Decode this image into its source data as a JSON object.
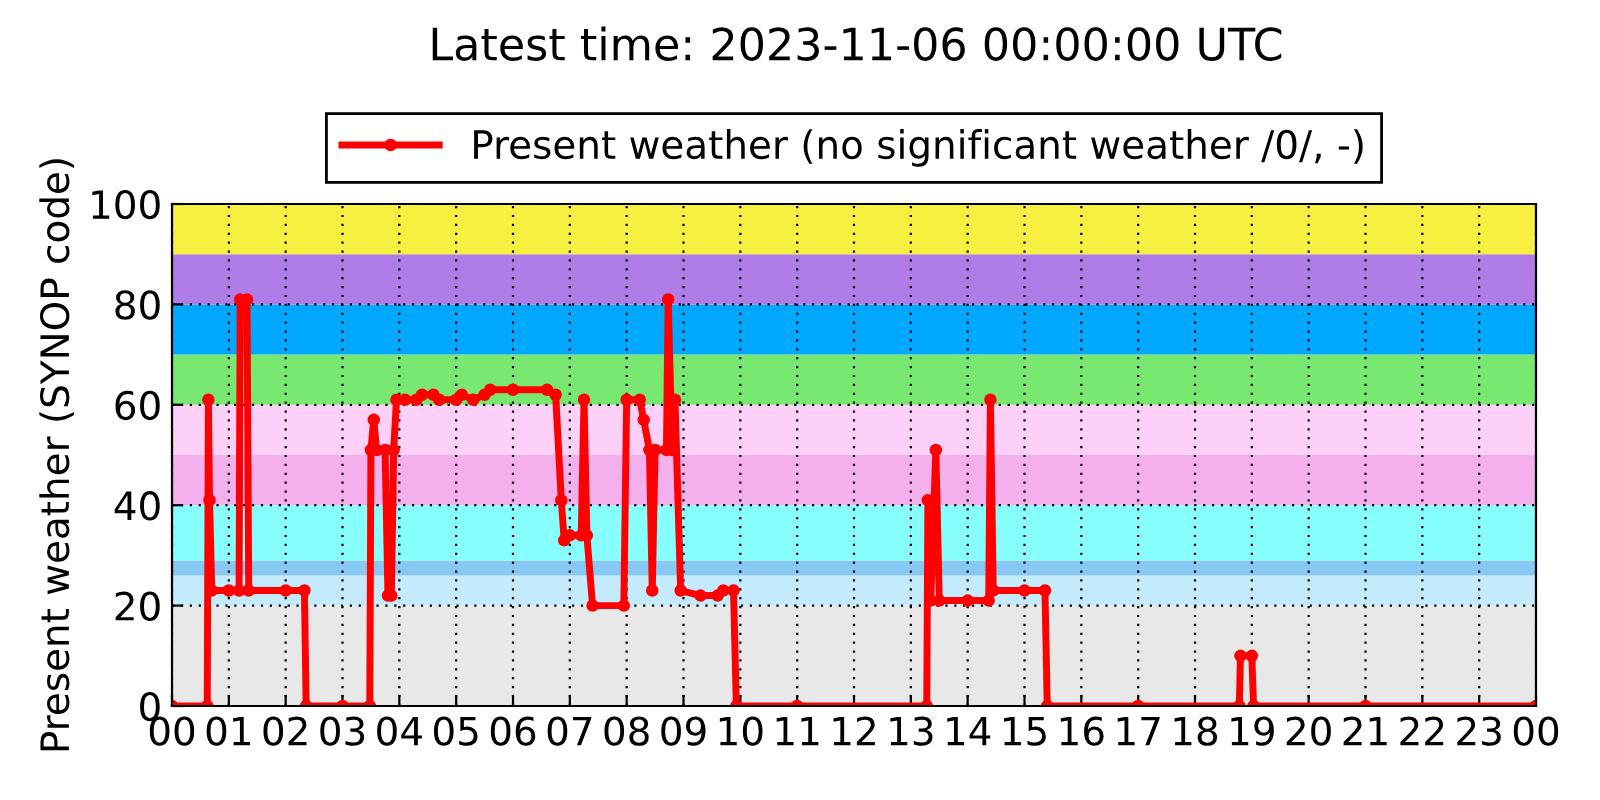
{
  "chart_data": {
    "type": "line",
    "title": "Latest time: 2023-11-06 00:00:00 UTC",
    "ylabel": "Present weather (SYNOP code)",
    "series": [
      {
        "name": "Present weather (no significant weather /0/, -)",
        "color": "#ff0000",
        "x": [
          0,
          0.62,
          0.64,
          0.66,
          0.7,
          1.0,
          1.18,
          1.2,
          1.32,
          1.35,
          2.0,
          2.33,
          2.36,
          3.0,
          3.48,
          3.5,
          3.55,
          3.6,
          3.75,
          3.8,
          3.86,
          3.9,
          3.95,
          4.1,
          4.3,
          4.4,
          4.6,
          4.7,
          5.0,
          5.1,
          5.3,
          5.5,
          5.6,
          6.0,
          6.6,
          6.75,
          6.85,
          6.9,
          7.0,
          7.2,
          7.25,
          7.3,
          7.4,
          7.95,
          8.0,
          8.23,
          8.3,
          8.4,
          8.45,
          8.5,
          8.7,
          8.73,
          8.8,
          8.85,
          8.95,
          9.3,
          9.6,
          9.7,
          9.88,
          9.93,
          11.0,
          13.28,
          13.3,
          13.35,
          13.44,
          13.5,
          14.0,
          14.37,
          14.4,
          14.45,
          15.0,
          15.36,
          15.4,
          17.0,
          18.78,
          18.8,
          19.0,
          19.03,
          21.0,
          24
        ],
        "values": [
          0,
          0,
          61,
          41,
          23,
          23,
          23,
          81,
          81,
          23,
          23,
          23,
          0,
          0,
          0,
          51,
          57,
          51,
          51,
          22,
          22,
          51,
          61,
          61,
          61,
          62,
          62,
          61,
          61,
          62,
          61,
          62,
          63,
          63,
          63,
          62,
          41,
          33,
          34,
          34,
          61,
          34,
          20,
          20,
          61,
          61,
          57,
          51,
          23,
          51,
          51,
          81,
          51,
          61,
          23,
          22,
          22,
          23,
          23,
          0,
          0,
          0,
          41,
          21,
          51,
          21,
          21,
          21,
          61,
          23,
          23,
          23,
          0,
          0,
          0,
          10,
          10,
          0,
          0,
          0
        ]
      }
    ],
    "xlim": [
      0,
      24
    ],
    "xticks": [
      {
        "value": 0,
        "label": "00"
      },
      {
        "value": 1,
        "label": "01"
      },
      {
        "value": 2,
        "label": "02"
      },
      {
        "value": 3,
        "label": "03"
      },
      {
        "value": 4,
        "label": "04"
      },
      {
        "value": 5,
        "label": "05"
      },
      {
        "value": 6,
        "label": "06"
      },
      {
        "value": 7,
        "label": "07"
      },
      {
        "value": 8,
        "label": "08"
      },
      {
        "value": 9,
        "label": "09"
      },
      {
        "value": 10,
        "label": "10"
      },
      {
        "value": 11,
        "label": "11"
      },
      {
        "value": 12,
        "label": "12"
      },
      {
        "value": 13,
        "label": "13"
      },
      {
        "value": 14,
        "label": "14"
      },
      {
        "value": 15,
        "label": "15"
      },
      {
        "value": 16,
        "label": "16"
      },
      {
        "value": 17,
        "label": "17"
      },
      {
        "value": 18,
        "label": "18"
      },
      {
        "value": 19,
        "label": "19"
      },
      {
        "value": 20,
        "label": "20"
      },
      {
        "value": 21,
        "label": "21"
      },
      {
        "value": 22,
        "label": "22"
      },
      {
        "value": 23,
        "label": "23"
      },
      {
        "value": 24,
        "label": "00"
      }
    ],
    "ylim": [
      0,
      100
    ],
    "yticks": [
      0,
      20,
      40,
      60,
      80,
      100
    ],
    "bands": [
      {
        "axis": "y",
        "from": 0,
        "to": 20,
        "color": "#e8e8e8"
      },
      {
        "axis": "y",
        "from": 20,
        "to": 26,
        "color": "#c4eafe"
      },
      {
        "axis": "y",
        "from": 26,
        "to": 29,
        "color": "#88c8f4"
      },
      {
        "axis": "y",
        "from": 29,
        "to": 40,
        "color": "#88ffff"
      },
      {
        "axis": "y",
        "from": 40,
        "to": 50,
        "color": "#f4b0ec"
      },
      {
        "axis": "y",
        "from": 50,
        "to": 60,
        "color": "#fdd0f8"
      },
      {
        "axis": "y",
        "from": 60,
        "to": 70,
        "color": "#78e870"
      },
      {
        "axis": "y",
        "from": 70,
        "to": 80,
        "color": "#00a8ff"
      },
      {
        "axis": "y",
        "from": 80,
        "to": 90,
        "color": "#b07ce8"
      },
      {
        "axis": "y",
        "from": 90,
        "to": 100,
        "color": "#f8f040"
      }
    ],
    "grid": true,
    "legend": "top",
    "marker": "circle",
    "line_style": "solid"
  }
}
